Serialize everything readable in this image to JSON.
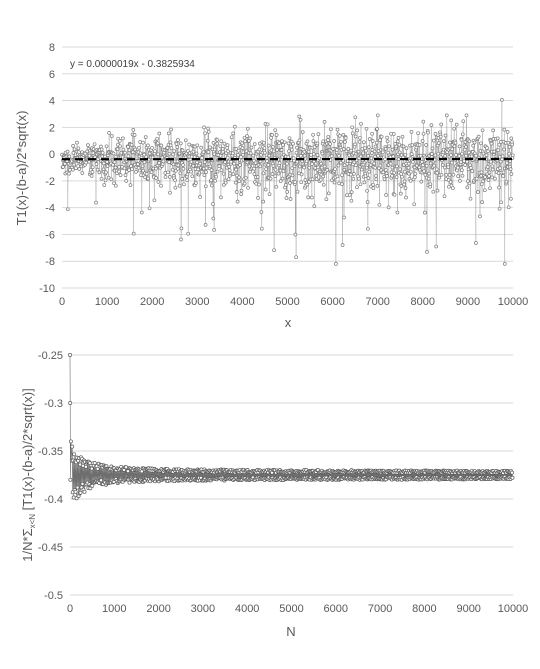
{
  "chart_data": [
    {
      "type": "scatter",
      "xlabel": "x",
      "ylabel": "T1(x)-(b-a)/2*sqrt(x)",
      "xlim": [
        0,
        10000
      ],
      "ylim": [
        -10,
        8
      ],
      "x_ticks": [
        "0",
        "1000",
        "2000",
        "3000",
        "4000",
        "5000",
        "6000",
        "7000",
        "8000",
        "9000",
        "10000"
      ],
      "y_ticks": [
        "8",
        "6",
        "4",
        "2",
        "0",
        "-2",
        "-4",
        "-6",
        "-8",
        "-10"
      ],
      "grid": true,
      "point_color": "#7f7f7f",
      "marker": "open-circle",
      "connected": true,
      "annotation": "y = 0.0000019x - 0.3825934",
      "trendline": {
        "style": "dashed",
        "color": "#000000",
        "slope": 1.9e-06,
        "intercept": -0.3825934
      },
      "noise_envelope": [
        {
          "x": 0,
          "spread": 1.2
        },
        {
          "x": 1000,
          "spread": 1.9
        },
        {
          "x": 2000,
          "spread": 2.3
        },
        {
          "x": 3000,
          "spread": 2.6
        },
        {
          "x": 4000,
          "spread": 2.8
        },
        {
          "x": 5000,
          "spread": 3.0
        },
        {
          "x": 6000,
          "spread": 3.1
        },
        {
          "x": 7000,
          "spread": 3.2
        },
        {
          "x": 8000,
          "spread": 3.3
        },
        {
          "x": 9000,
          "spread": 3.5
        },
        {
          "x": 10000,
          "spread": 3.6
        }
      ]
    },
    {
      "type": "scatter",
      "xlabel": "N",
      "ylabel": "1/N*Σx<N [T1(x)-(b-a)/2*sqrt(x)]",
      "xlim": [
        0,
        10000
      ],
      "ylim": [
        -0.5,
        -0.25
      ],
      "x_ticks": [
        "0",
        "1000",
        "2000",
        "3000",
        "4000",
        "5000",
        "6000",
        "7000",
        "8000",
        "9000",
        "10000"
      ],
      "y_ticks": [
        "-0.25",
        "-0.3",
        "-0.35",
        "-0.4",
        "-0.45",
        "-0.5"
      ],
      "grid": true,
      "point_color": "#595959",
      "marker": "open-circle",
      "connected": true,
      "points": [
        {
          "x": 1,
          "y": -0.25
        },
        {
          "x": 5,
          "y": -0.3
        },
        {
          "x": 10,
          "y": -0.38
        },
        {
          "x": 20,
          "y": -0.34
        },
        {
          "x": 40,
          "y": -0.36
        },
        {
          "x": 100,
          "y": -0.375
        },
        {
          "x": 300,
          "y": -0.372
        },
        {
          "x": 1000,
          "y": -0.375
        },
        {
          "x": 3000,
          "y": -0.374
        },
        {
          "x": 6000,
          "y": -0.376
        },
        {
          "x": 10000,
          "y": -0.375
        }
      ],
      "convergence_value": -0.375,
      "noise_envelope": [
        {
          "x": 0,
          "spread": 0.03
        },
        {
          "x": 200,
          "spread": 0.02
        },
        {
          "x": 500,
          "spread": 0.012
        },
        {
          "x": 1000,
          "spread": 0.008
        },
        {
          "x": 2000,
          "spread": 0.006
        },
        {
          "x": 4000,
          "spread": 0.005
        },
        {
          "x": 10000,
          "spread": 0.004
        }
      ]
    }
  ]
}
